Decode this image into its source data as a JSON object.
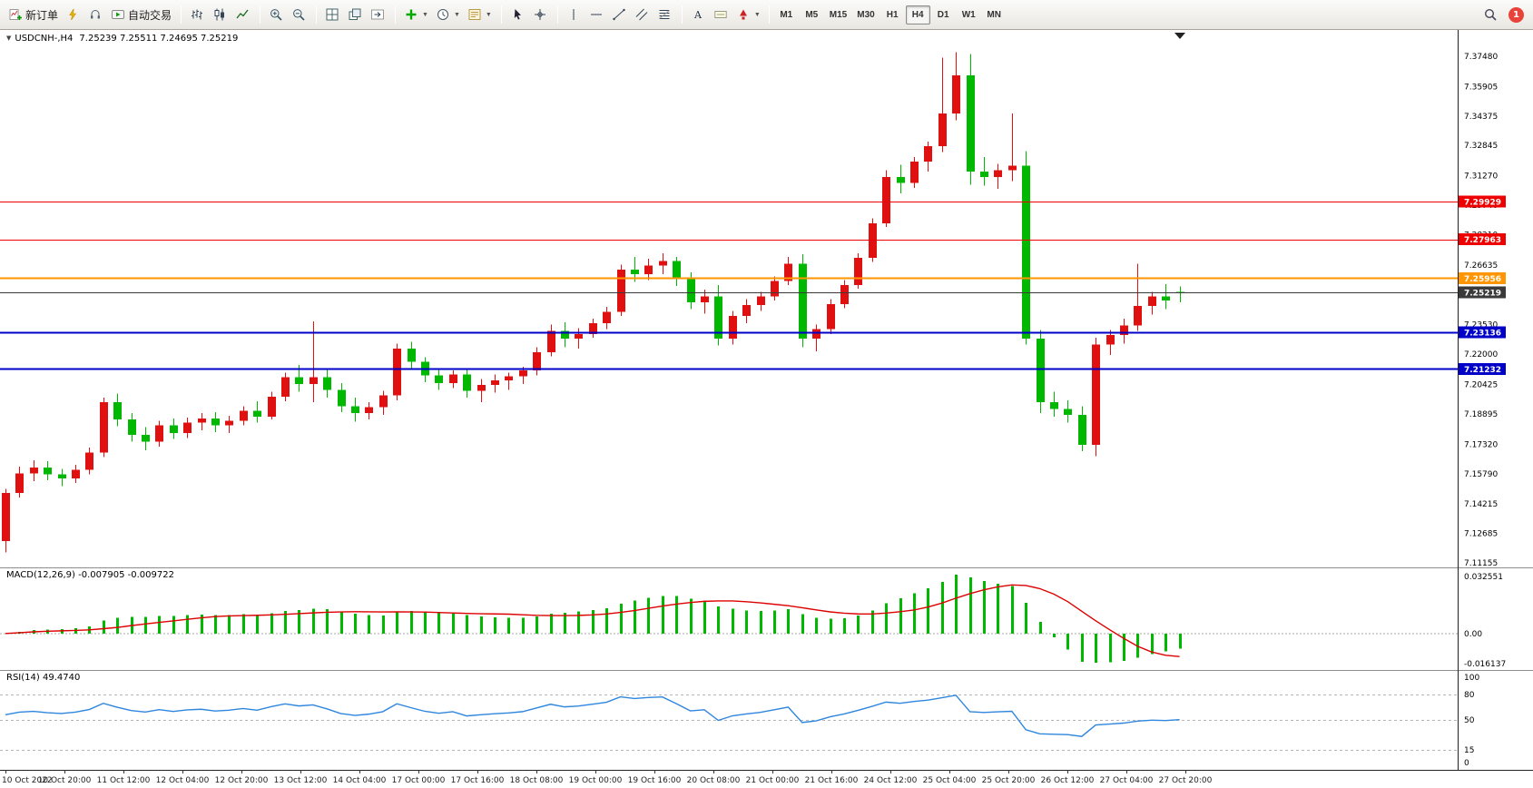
{
  "toolbar": {
    "button_groups": [
      [
        {
          "name": "new-order-button",
          "icon": "new-order-icon",
          "label": "新订单"
        },
        {
          "name": "mql-button",
          "icon": "lightning-icon"
        },
        {
          "name": "support-button",
          "icon": "headset-icon"
        },
        {
          "name": "autotrading-button",
          "icon": "autotrading-icon",
          "label": "自动交易"
        }
      ],
      [
        {
          "name": "bar-chart-button",
          "icon": "bar-chart-icon"
        },
        {
          "name": "candlestick-button",
          "icon": "candlestick-icon"
        },
        {
          "name": "line-chart-button",
          "icon": "line-chart-icon"
        }
      ],
      [
        {
          "name": "zoom-in-button",
          "icon": "zoom-in-icon"
        },
        {
          "name": "zoom-out-button",
          "icon": "zoom-out-icon"
        }
      ],
      [
        {
          "name": "tile-windows-button",
          "icon": "tile-windows-icon"
        },
        {
          "name": "cascade-windows-button",
          "icon": "cascade-icon"
        },
        {
          "name": "chart-shift-button",
          "icon": "chart-shift-icon"
        }
      ],
      [
        {
          "name": "indicators-button",
          "icon": "indicators-icon",
          "caret": true
        },
        {
          "name": "periods-button",
          "icon": "clock-icon",
          "caret": true
        },
        {
          "name": "templates-button",
          "icon": "template-icon",
          "caret": true
        }
      ],
      [
        {
          "name": "cursor-button",
          "icon": "cursor-icon"
        },
        {
          "name": "crosshair-button",
          "icon": "crosshair-icon"
        }
      ],
      [
        {
          "name": "vertical-line-button",
          "icon": "vertical-line-icon"
        },
        {
          "name": "horizontal-line-button",
          "icon": "horizontal-line-icon"
        },
        {
          "name": "trendline-button",
          "icon": "trendline-icon"
        },
        {
          "name": "channel-button",
          "icon": "channel-icon"
        },
        {
          "name": "fibonacci-button",
          "icon": "fibonacci-icon"
        }
      ],
      [
        {
          "name": "text-button",
          "icon": "text-icon"
        },
        {
          "name": "label-button",
          "icon": "label-icon"
        },
        {
          "name": "arrows-button",
          "icon": "arrows-icon",
          "caret": true
        }
      ]
    ],
    "timeframes": [
      "M1",
      "M5",
      "M15",
      "M30",
      "H1",
      "H4",
      "D1",
      "W1",
      "MN"
    ],
    "active_timeframe": "H4",
    "right_buttons": [
      {
        "name": "search-button",
        "icon": "search-icon"
      }
    ],
    "notification_count": "1"
  },
  "chart": {
    "dropdown_marker": "▼",
    "symbol_period": "USDCNH-,H4",
    "ohlc_text": "7.25239 7.25511 7.24695 7.25219"
  },
  "chart_data": {
    "type": "candlestick",
    "symbol": "USDCNH-",
    "period": "H4",
    "current_ohlc": {
      "open": 7.25239,
      "high": 7.25511,
      "low": 7.24695,
      "close": 7.25219
    },
    "up_color": "#e01010",
    "down_color": "#00b800",
    "price_range": {
      "max": 7.3847,
      "min": 7.113
    },
    "price_axis_labels": [
      "7.37480",
      "7.35905",
      "7.34375",
      "7.32845",
      "7.31270",
      "7.29740",
      "7.28210",
      "7.26635",
      "7.25105",
      "7.23530",
      "7.22000",
      "7.20425",
      "7.18895",
      "7.17320",
      "7.15790",
      "7.14215",
      "7.12685",
      "7.11155"
    ],
    "hlines": [
      {
        "price": 7.29929,
        "label": "7.29929",
        "color": "#ee0000",
        "width": 1
      },
      {
        "price": 7.27963,
        "label": "7.27963",
        "color": "#ee0000",
        "width": 1
      },
      {
        "price": 7.25956,
        "label": "7.25956",
        "color": "#ff9500",
        "width": 2
      },
      {
        "price": 7.25219,
        "label": "7.25219",
        "color": "#3a3a3a",
        "width": 1
      },
      {
        "price": 7.23136,
        "label": "7.23136",
        "color": "#0000c8",
        "width": 2
      },
      {
        "price": 7.21232,
        "label": "7.21232",
        "color": "#0000c8",
        "width": 2
      }
    ],
    "candles": [
      [
        7.123,
        7.15,
        7.117,
        7.148
      ],
      [
        7.148,
        7.1615,
        7.1455,
        7.158
      ],
      [
        7.158,
        7.165,
        7.154,
        7.161
      ],
      [
        7.161,
        7.1645,
        7.1545,
        7.1575
      ],
      [
        7.1575,
        7.1605,
        7.1515,
        7.1555
      ],
      [
        7.1555,
        7.1625,
        7.153,
        7.16
      ],
      [
        7.16,
        7.1715,
        7.1575,
        7.169
      ],
      [
        7.169,
        7.1975,
        7.1665,
        7.195
      ],
      [
        7.195,
        7.1995,
        7.1825,
        7.186
      ],
      [
        7.186,
        7.1895,
        7.1745,
        7.178
      ],
      [
        7.178,
        7.182,
        7.17,
        7.1745
      ],
      [
        7.1745,
        7.1855,
        7.172,
        7.183
      ],
      [
        7.183,
        7.1865,
        7.176,
        7.179
      ],
      [
        7.179,
        7.187,
        7.1765,
        7.1845
      ],
      [
        7.1845,
        7.1895,
        7.1805,
        7.1865
      ],
      [
        7.1865,
        7.19,
        7.1795,
        7.183
      ],
      [
        7.183,
        7.188,
        7.179,
        7.1855
      ],
      [
        7.1855,
        7.193,
        7.183,
        7.1905
      ],
      [
        7.1905,
        7.1955,
        7.1845,
        7.1875
      ],
      [
        7.1875,
        7.2005,
        7.186,
        7.198
      ],
      [
        7.198,
        7.2105,
        7.1955,
        7.208
      ],
      [
        7.208,
        7.2145,
        7.2005,
        7.2045
      ],
      [
        7.2045,
        7.237,
        7.195,
        7.208
      ],
      [
        7.208,
        7.2125,
        7.1975,
        7.2015
      ],
      [
        7.2015,
        7.205,
        7.19,
        7.193
      ],
      [
        7.193,
        7.1975,
        7.185,
        7.1895
      ],
      [
        7.1895,
        7.195,
        7.186,
        7.1925
      ],
      [
        7.1925,
        7.201,
        7.1885,
        7.1985
      ],
      [
        7.1985,
        7.2255,
        7.196,
        7.223
      ],
      [
        7.223,
        7.2265,
        7.2125,
        7.216
      ],
      [
        7.216,
        7.2185,
        7.2055,
        7.209
      ],
      [
        7.209,
        7.2125,
        7.2015,
        7.205
      ],
      [
        7.205,
        7.2115,
        7.2025,
        7.2095
      ],
      [
        7.2095,
        7.212,
        7.1975,
        7.201
      ],
      [
        7.201,
        7.207,
        7.195,
        7.204
      ],
      [
        7.204,
        7.2095,
        7.2,
        7.2065
      ],
      [
        7.2065,
        7.2105,
        7.2015,
        7.2085
      ],
      [
        7.2085,
        7.2135,
        7.2045,
        7.2115
      ],
      [
        7.2115,
        7.2235,
        7.209,
        7.221
      ],
      [
        7.221,
        7.2355,
        7.219,
        7.232
      ],
      [
        7.232,
        7.2365,
        7.2235,
        7.228
      ],
      [
        7.228,
        7.2335,
        7.223,
        7.2305
      ],
      [
        7.2305,
        7.2385,
        7.2285,
        7.236
      ],
      [
        7.236,
        7.2445,
        7.233,
        7.242
      ],
      [
        7.242,
        7.2665,
        7.24,
        7.264
      ],
      [
        7.264,
        7.2705,
        7.2575,
        7.2615
      ],
      [
        7.2615,
        7.2695,
        7.2585,
        7.266
      ],
      [
        7.266,
        7.2725,
        7.2615,
        7.2685
      ],
      [
        7.2685,
        7.2705,
        7.2555,
        7.259
      ],
      [
        7.259,
        7.2625,
        7.2435,
        7.247
      ],
      [
        7.247,
        7.2535,
        7.241,
        7.25
      ],
      [
        7.25,
        7.256,
        7.2245,
        7.228
      ],
      [
        7.228,
        7.2425,
        7.225,
        7.24
      ],
      [
        7.24,
        7.2485,
        7.236,
        7.2455
      ],
      [
        7.2455,
        7.2525,
        7.2425,
        7.25
      ],
      [
        7.25,
        7.2605,
        7.248,
        7.258
      ],
      [
        7.258,
        7.2705,
        7.256,
        7.267
      ],
      [
        7.267,
        7.272,
        7.2235,
        7.228
      ],
      [
        7.228,
        7.2355,
        7.2215,
        7.233
      ],
      [
        7.233,
        7.2485,
        7.2305,
        7.246
      ],
      [
        7.246,
        7.2585,
        7.244,
        7.256
      ],
      [
        7.256,
        7.2725,
        7.254,
        7.27
      ],
      [
        7.27,
        7.2905,
        7.268,
        7.288
      ],
      [
        7.288,
        7.3155,
        7.286,
        7.312
      ],
      [
        7.312,
        7.3185,
        7.3035,
        7.309
      ],
      [
        7.309,
        7.3225,
        7.3065,
        7.32
      ],
      [
        7.32,
        7.3305,
        7.315,
        7.328
      ],
      [
        7.328,
        7.374,
        7.325,
        7.345
      ],
      [
        7.345,
        7.377,
        7.3415,
        7.365
      ],
      [
        7.365,
        7.376,
        7.308,
        7.315
      ],
      [
        7.315,
        7.3225,
        7.3075,
        7.312
      ],
      [
        7.312,
        7.319,
        7.306,
        7.3155
      ],
      [
        7.3155,
        7.345,
        7.31,
        7.318
      ],
      [
        7.318,
        7.3255,
        7.225,
        7.228
      ],
      [
        7.228,
        7.2325,
        7.1895,
        7.195
      ],
      [
        7.195,
        7.2005,
        7.1875,
        7.1915
      ],
      [
        7.1915,
        7.196,
        7.1845,
        7.1885
      ],
      [
        7.1885,
        7.193,
        7.1695,
        7.173
      ],
      [
        7.173,
        7.2285,
        7.167,
        7.225
      ],
      [
        7.225,
        7.2325,
        7.2195,
        7.23
      ],
      [
        7.23,
        7.2385,
        7.2255,
        7.235
      ],
      [
        7.235,
        7.267,
        7.232,
        7.245
      ],
      [
        7.245,
        7.2525,
        7.2405,
        7.25
      ],
      [
        7.25,
        7.2565,
        7.2435,
        7.248
      ],
      [
        7.25239,
        7.25511,
        7.24695,
        7.25219
      ]
    ],
    "time_labels": [
      "10 Oct 2022",
      "10 Oct 20:00",
      "11 Oct 12:00",
      "12 Oct 04:00",
      "12 Oct 20:00",
      "13 Oct 12:00",
      "14 Oct 04:00",
      "17 Oct 00:00",
      "17 Oct 16:00",
      "18 Oct 08:00",
      "19 Oct 00:00",
      "19 Oct 16:00",
      "20 Oct 08:00",
      "21 Oct 00:00",
      "21 Oct 16:00",
      "24 Oct 12:00",
      "25 Oct 04:00",
      "25 Oct 20:00",
      "26 Oct 12:00",
      "27 Oct 04:00",
      "27 Oct 20:00"
    ],
    "macd": {
      "label": "MACD(12,26,9)",
      "values_text": "-0.007905 -0.009722",
      "fast": 12,
      "slow": 26,
      "signal": 9,
      "histogram_color": "#00b800",
      "signal_color": "#dd0000",
      "axis_labels": [
        {
          "text": "0.032551",
          "pos": "max"
        },
        {
          "text": "0.00",
          "pos": "zero"
        },
        {
          "text": "-0.016137",
          "pos": "min"
        }
      ]
    },
    "rsi": {
      "label": "RSI(14)",
      "value_text": "49.4740",
      "period": 14,
      "levels": [
        80,
        50,
        15
      ],
      "axis_labels": [
        100,
        80,
        50,
        15,
        0
      ],
      "line_color": "#2e86de"
    }
  }
}
